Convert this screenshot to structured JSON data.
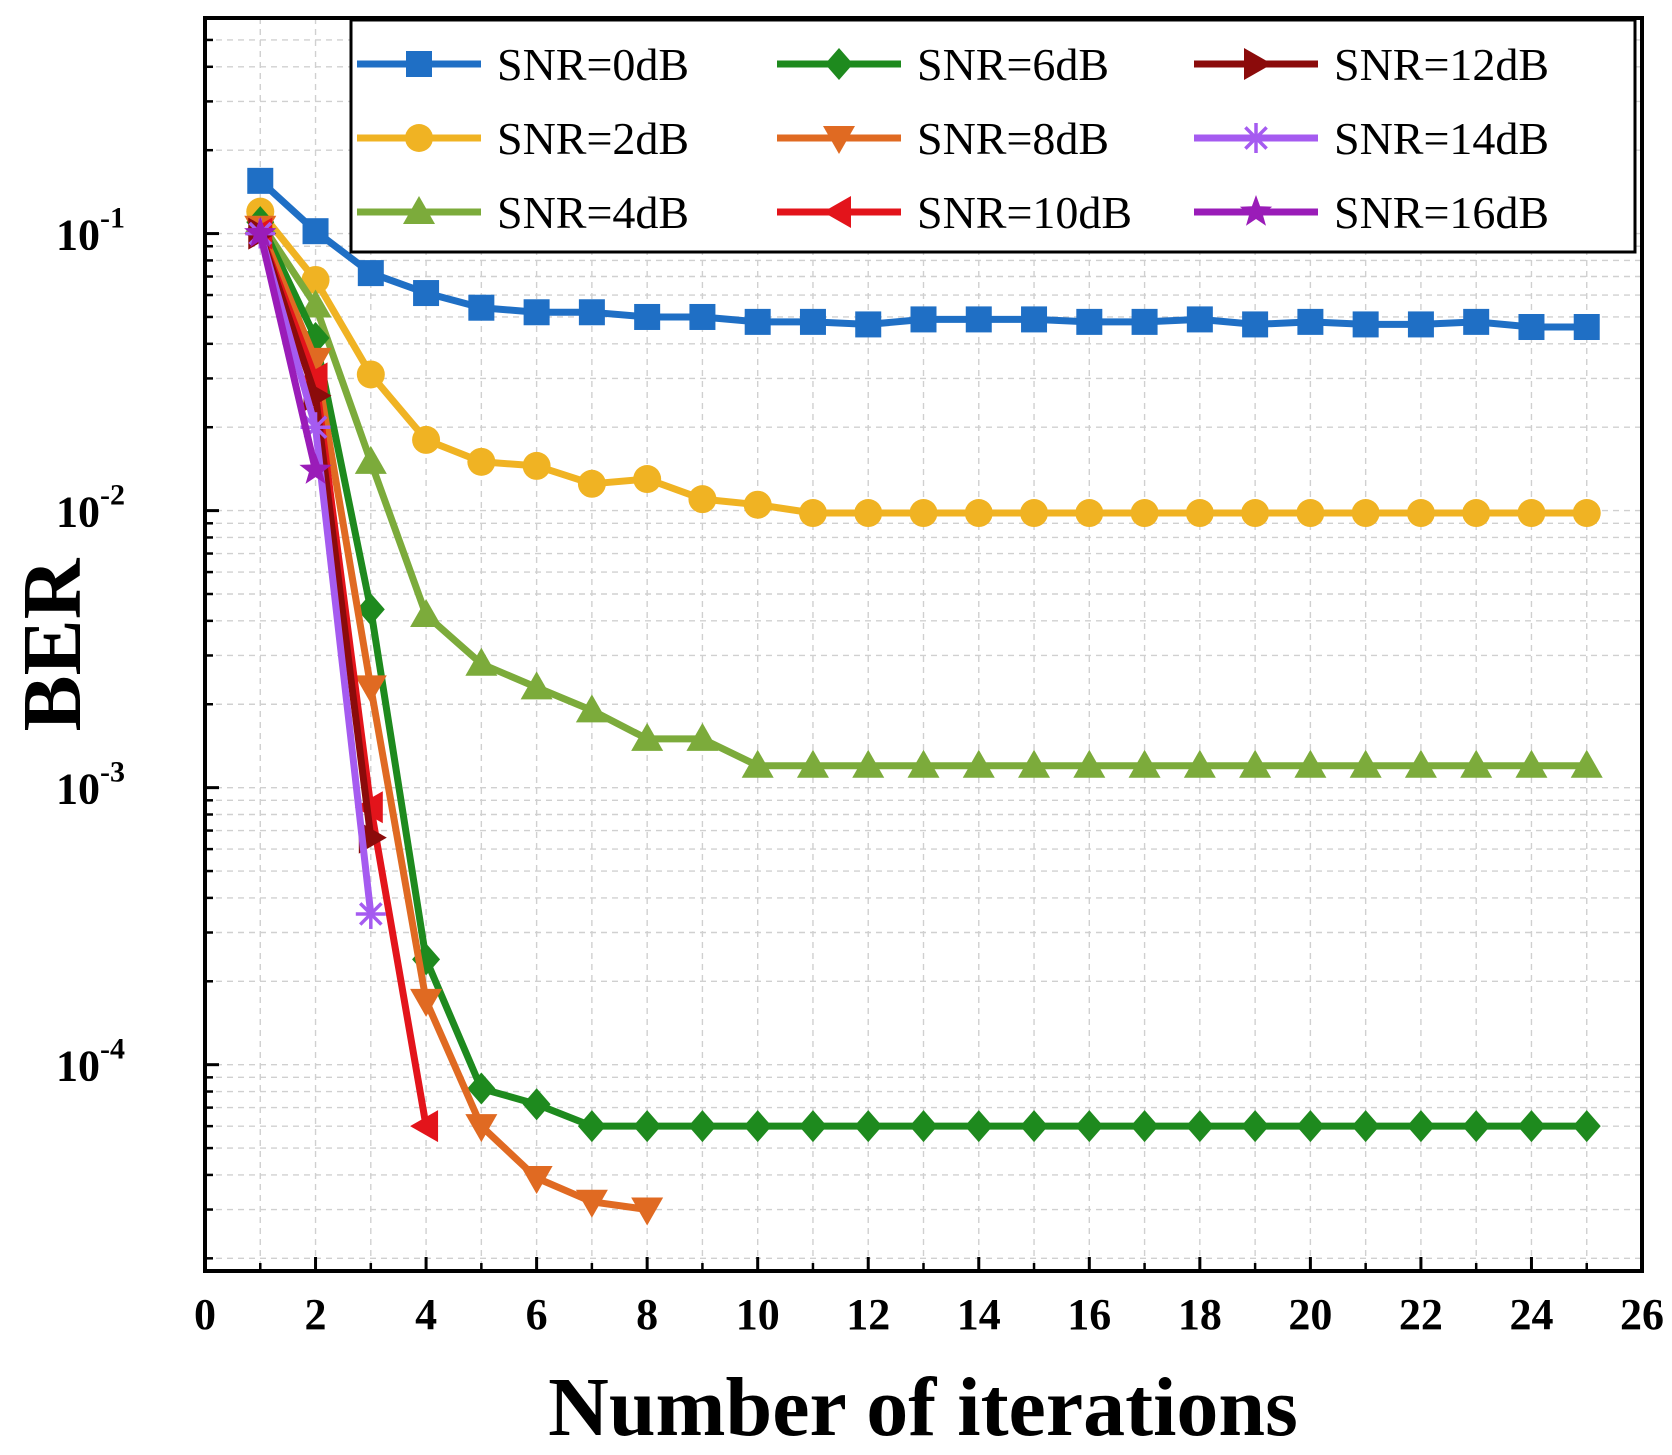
{
  "chart_data": {
    "type": "line",
    "xlabel": "Number of iterations",
    "ylabel": "BER",
    "xlim": [
      0,
      26
    ],
    "ylim": [
      1.8e-05,
      0.6
    ],
    "yscale": "log",
    "grid": true,
    "legend_position": "top-right",
    "x_ticks": [
      "0",
      "2",
      "4",
      "6",
      "8",
      "10",
      "12",
      "14",
      "16",
      "18",
      "20",
      "22",
      "24",
      "26"
    ],
    "y_ticks": [
      {
        "base": "10",
        "exp": "-1",
        "value": 0.1
      },
      {
        "base": "10",
        "exp": "-2",
        "value": 0.01
      },
      {
        "base": "10",
        "exp": "-3",
        "value": 0.001
      },
      {
        "base": "10",
        "exp": "-4",
        "value": 0.0001
      }
    ],
    "series": [
      {
        "name": "SNR=0dB",
        "color": "#1f6fc5",
        "marker": "square",
        "x": [
          1,
          2,
          3,
          4,
          5,
          6,
          7,
          8,
          9,
          10,
          11,
          12,
          13,
          14,
          15,
          16,
          17,
          18,
          19,
          20,
          21,
          22,
          23,
          24,
          25
        ],
        "y": [
          0.155,
          0.102,
          0.072,
          0.061,
          0.054,
          0.052,
          0.052,
          0.05,
          0.05,
          0.048,
          0.048,
          0.047,
          0.049,
          0.049,
          0.049,
          0.048,
          0.048,
          0.049,
          0.047,
          0.048,
          0.047,
          0.047,
          0.048,
          0.046,
          0.046
        ]
      },
      {
        "name": "SNR=2dB",
        "color": "#f0b323",
        "marker": "circle",
        "x": [
          1,
          2,
          3,
          4,
          5,
          6,
          7,
          8,
          9,
          10,
          11,
          12,
          13,
          14,
          15,
          16,
          17,
          18,
          19,
          20,
          21,
          22,
          23,
          24,
          25
        ],
        "y": [
          0.12,
          0.068,
          0.031,
          0.018,
          0.015,
          0.0145,
          0.0125,
          0.013,
          0.011,
          0.0105,
          0.0098,
          0.0098,
          0.0098,
          0.0098,
          0.0098,
          0.0098,
          0.0098,
          0.0098,
          0.0098,
          0.0098,
          0.0098,
          0.0098,
          0.0098,
          0.0098,
          0.0098
        ]
      },
      {
        "name": "SNR=4dB",
        "color": "#7cab3b",
        "marker": "triangle-up",
        "x": [
          1,
          2,
          3,
          4,
          5,
          6,
          7,
          8,
          9,
          10,
          11,
          12,
          13,
          14,
          15,
          16,
          17,
          18,
          19,
          20,
          21,
          22,
          23,
          24,
          25
        ],
        "y": [
          0.11,
          0.055,
          0.015,
          0.0042,
          0.0028,
          0.0023,
          0.0019,
          0.0015,
          0.0015,
          0.0012,
          0.0012,
          0.0012,
          0.0012,
          0.0012,
          0.0012,
          0.0012,
          0.0012,
          0.0012,
          0.0012,
          0.0012,
          0.0012,
          0.0012,
          0.0012,
          0.0012,
          0.0012
        ]
      },
      {
        "name": "SNR=6dB",
        "color": "#1e8a1e",
        "marker": "diamond",
        "x": [
          1,
          2,
          3,
          4,
          5,
          6,
          7,
          8,
          9,
          10,
          11,
          12,
          13,
          14,
          15,
          16,
          17,
          18,
          19,
          20,
          21,
          22,
          23,
          24,
          25
        ],
        "y": [
          0.11,
          0.042,
          0.0044,
          0.00024,
          8.2e-05,
          7.2e-05,
          6e-05,
          6e-05,
          6e-05,
          6e-05,
          6e-05,
          6e-05,
          6e-05,
          6e-05,
          6e-05,
          6e-05,
          6e-05,
          6e-05,
          6e-05,
          6e-05,
          6e-05,
          6e-05,
          6e-05,
          6e-05,
          6e-05
        ]
      },
      {
        "name": "SNR=8dB",
        "color": "#e06a22",
        "marker": "triangle-down",
        "x": [
          1,
          2,
          3,
          4,
          5,
          6,
          7,
          8
        ],
        "y": [
          0.105,
          0.035,
          0.0023,
          0.00017,
          6e-05,
          3.9e-05,
          3.2e-05,
          3e-05
        ]
      },
      {
        "name": "SNR=10dB",
        "color": "#e3141b",
        "marker": "triangle-left",
        "x": [
          1,
          2,
          3,
          4
        ],
        "y": [
          0.1,
          0.03,
          0.00085,
          6e-05
        ]
      },
      {
        "name": "SNR=12dB",
        "color": "#8b0b0b",
        "marker": "triangle-right",
        "x": [
          1,
          2,
          3
        ],
        "y": [
          0.1,
          0.026,
          0.00066
        ]
      },
      {
        "name": "SNR=14dB",
        "color": "#a55bf0",
        "marker": "asterisk",
        "x": [
          1,
          2,
          3
        ],
        "y": [
          0.1,
          0.02,
          0.00035
        ]
      },
      {
        "name": "SNR=16dB",
        "color": "#9a1cb8",
        "marker": "star",
        "x": [
          1,
          2
        ],
        "y": [
          0.1,
          0.014
        ]
      }
    ]
  }
}
